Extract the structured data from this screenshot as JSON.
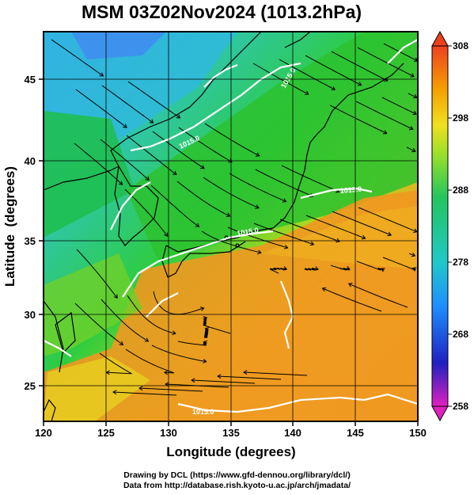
{
  "title": "MSM 03Z02Nov2024 (1013.2hPa)",
  "map": {
    "xlabel": "Longitude (degrees)",
    "ylabel": "Latitude  (degrees)",
    "x_ticks": [
      "120",
      "125",
      "130",
      "135",
      "140",
      "145",
      "150"
    ],
    "y_ticks": [
      "25",
      "30",
      "35",
      "40",
      "45"
    ],
    "x_range": [
      120,
      150
    ],
    "y_range": [
      22.4,
      47.6
    ],
    "grid": true,
    "contour_label": "1015.0",
    "contour_color": "#ffffff",
    "coastline_color": "#000000",
    "streamline_color": "#000000"
  },
  "colorbar": {
    "ticks": [
      "308",
      "298",
      "288",
      "278",
      "268",
      "258"
    ],
    "range": [
      258,
      308
    ],
    "colors": [
      "#e020c0",
      "#2020c0",
      "#1e90ff",
      "#20c8c8",
      "#22c55e",
      "#9be02a",
      "#f0e020",
      "#f5a000",
      "#ee4020"
    ]
  },
  "credits": {
    "line1": "Drawing by DCL (https://www.gfd-dennou.org/library/dcl/)",
    "line2": "Data from http://database.rish.kyoto-u.ac.jp/arch/jmadata/"
  }
}
